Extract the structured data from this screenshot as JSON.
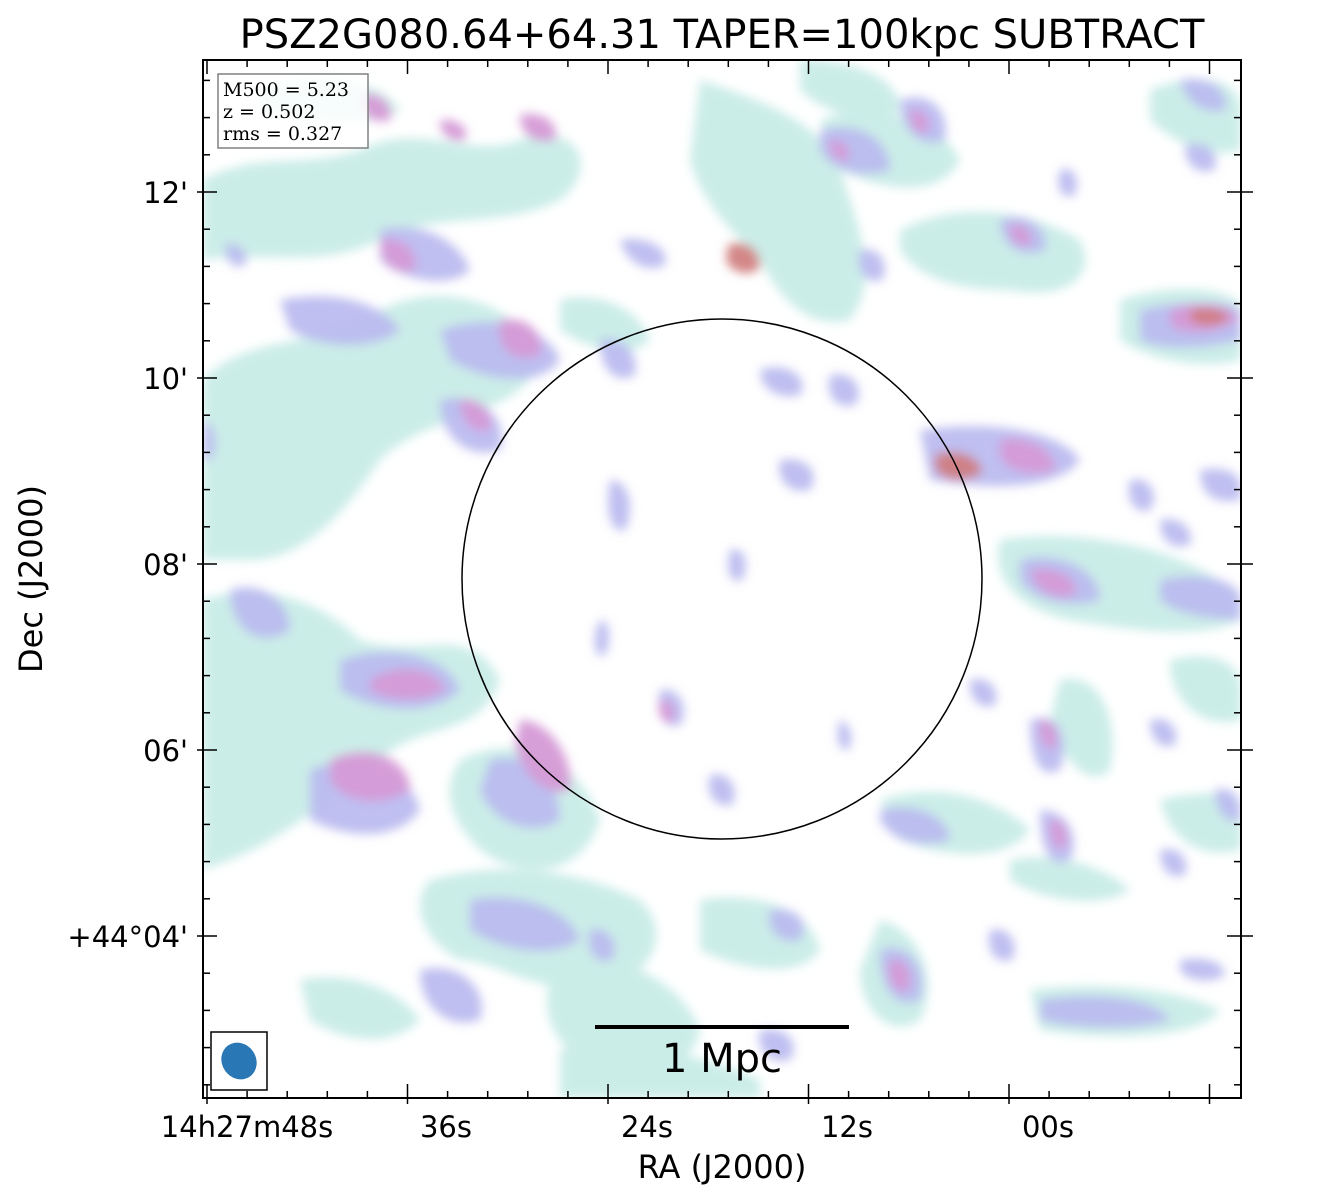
{
  "chart_data": {
    "type": "heatmap",
    "title": "PSZ2G080.64+64.31 TAPER=100kpc SUBTRACT",
    "xlabel": "RA (J2000)",
    "ylabel": "Dec (J2000)",
    "x_ticks": [
      "14h27m48s",
      "36s",
      "24s",
      "12s",
      "00s"
    ],
    "y_ticks": [
      "12'",
      "10'",
      "08'",
      "06'",
      "+44°04'"
    ],
    "info_box": [
      "M500 = 5.23",
      "z = 0.502",
      "rms = 0.327"
    ],
    "scale_bar_label": "1 Mpc",
    "colors": {
      "low": "#c6ece6",
      "mid": "#b9b9f0",
      "high": "#d59ad6",
      "peak": "#d07a7a",
      "beam": "#2a77b6",
      "circle": "#000000"
    },
    "emission_blobs": [
      {
        "ra": "14h27m19.6s",
        "dec": "+44°11.3'",
        "level": "peak"
      },
      {
        "ra": "14h27m04.6s",
        "dec": "+44°09.0'",
        "level": "peak"
      },
      {
        "ra": "14h26m57.6s",
        "dec": "+44°09.1'",
        "level": "high"
      },
      {
        "ra": "14h26m51.0s",
        "dec": "+44°10.6'",
        "level": "high"
      },
      {
        "ra": "14h27m29.5s",
        "dec": "+44°10.4'",
        "level": "high"
      },
      {
        "ra": "14h27m29.5s",
        "dec": "+44°06.0'",
        "level": "high"
      },
      {
        "ra": "14h27m40.0s",
        "dec": "+44°05.5'",
        "level": "high"
      },
      {
        "ra": "14h27m39.0s",
        "dec": "+44°11.3'",
        "level": "high"
      },
      {
        "ra": "14h27m32.5s",
        "dec": "+44°12.8'",
        "level": "high"
      },
      {
        "ra": "14h27m38.0s",
        "dec": "+44°06.8'",
        "level": "high"
      },
      {
        "ra": "14h26m59.0s",
        "dec": "+44°07.8'",
        "level": "high"
      },
      {
        "ra": "14h27m06.5s",
        "dec": "+44°03.5'",
        "level": "mid"
      },
      {
        "ra": "14h26m56.5s",
        "dec": "+44°06.2'",
        "level": "mid"
      },
      {
        "ra": "14h26m55.5s",
        "dec": "+44°05.0'",
        "level": "mid"
      }
    ]
  }
}
